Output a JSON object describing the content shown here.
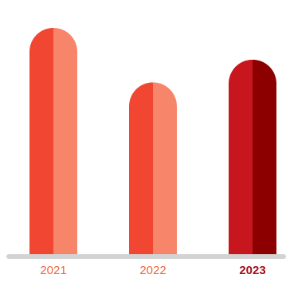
{
  "chart_data": {
    "type": "bar",
    "title": "",
    "xlabel": "",
    "ylabel": "",
    "categories": [
      "2021",
      "2022",
      "2023"
    ],
    "values": [
      100,
      76,
      86
    ],
    "ylim": [
      0,
      100
    ],
    "grid": false,
    "legend": "none",
    "highlighted_category": "2023",
    "colors": {
      "bar_left": "#f04632",
      "bar_right": "#f7856a",
      "highlight_left": "#c8161e",
      "highlight_right": "#8c0000",
      "baseline": "#d3d3d3",
      "label": "#f0643c",
      "label_highlight": "#a01019"
    }
  }
}
